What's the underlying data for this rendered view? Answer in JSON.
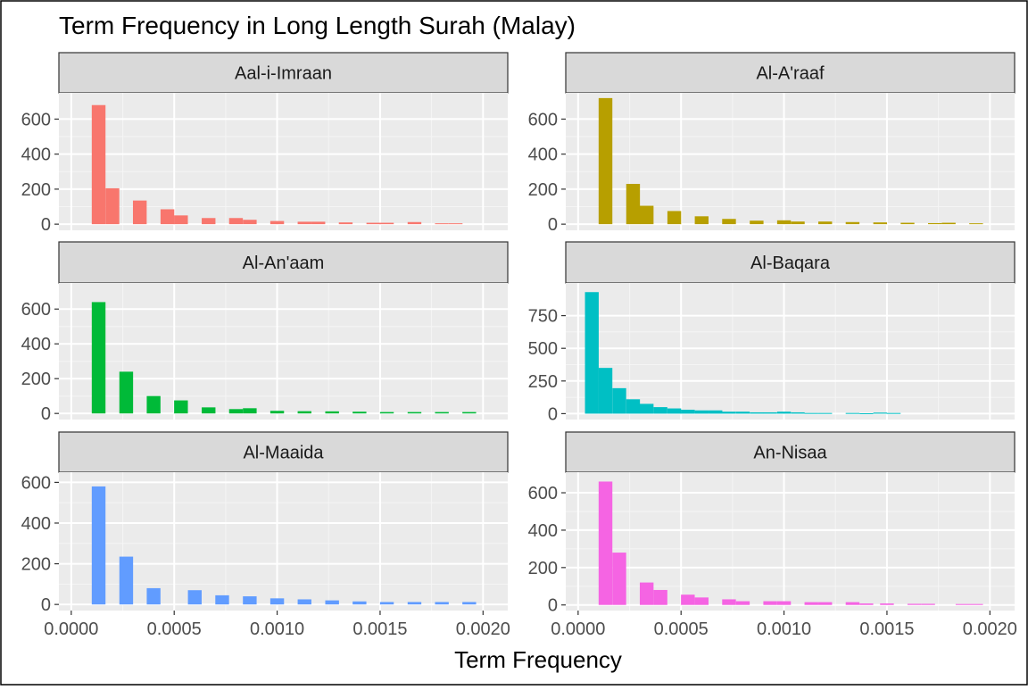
{
  "chart_data": {
    "type": "bar",
    "title": "Term Frequency in Long Length Surah (Malay)",
    "xlabel": "Term Frequency",
    "ylabel": "",
    "xlim": [
      -6e-05,
      0.00212
    ],
    "x_ticks": [
      "0.0000",
      "0.0005",
      "0.0010",
      "0.0015",
      "0.0020"
    ],
    "x_tick_values": [
      0,
      0.0005,
      0.001,
      0.0015,
      0.002
    ],
    "grid": true,
    "legend": "none",
    "facets": [
      {
        "name": "Aal-i-Imraan",
        "color": "#F8766D",
        "ylim": [
          -35,
          750
        ],
        "y_ticks": [
          0,
          200,
          400,
          600
        ],
        "bins": [
          {
            "x": 0.000133,
            "value": 680
          },
          {
            "x": 0.0002,
            "value": 205
          },
          {
            "x": 0.000333,
            "value": 135
          },
          {
            "x": 0.000467,
            "value": 85
          },
          {
            "x": 0.000533,
            "value": 50
          },
          {
            "x": 0.000667,
            "value": 35
          },
          {
            "x": 0.0008,
            "value": 35
          },
          {
            "x": 0.000867,
            "value": 25
          },
          {
            "x": 0.001,
            "value": 18
          },
          {
            "x": 0.001133,
            "value": 14
          },
          {
            "x": 0.0012,
            "value": 14
          },
          {
            "x": 0.001333,
            "value": 10
          },
          {
            "x": 0.001467,
            "value": 8
          },
          {
            "x": 0.001533,
            "value": 8
          },
          {
            "x": 0.001667,
            "value": 12
          },
          {
            "x": 0.0018,
            "value": 5
          },
          {
            "x": 0.001867,
            "value": 5
          }
        ]
      },
      {
        "name": "Al-A'raaf",
        "color": "#B79F00",
        "ylim": [
          -35,
          750
        ],
        "y_ticks": [
          0,
          200,
          400,
          600
        ],
        "bins": [
          {
            "x": 0.000133,
            "value": 720
          },
          {
            "x": 0.000267,
            "value": 230
          },
          {
            "x": 0.000333,
            "value": 105
          },
          {
            "x": 0.000467,
            "value": 75
          },
          {
            "x": 0.0006,
            "value": 45
          },
          {
            "x": 0.000733,
            "value": 30
          },
          {
            "x": 0.000867,
            "value": 20
          },
          {
            "x": 0.001,
            "value": 22
          },
          {
            "x": 0.001067,
            "value": 15
          },
          {
            "x": 0.0012,
            "value": 15
          },
          {
            "x": 0.001333,
            "value": 12
          },
          {
            "x": 0.001467,
            "value": 10
          },
          {
            "x": 0.0016,
            "value": 8
          },
          {
            "x": 0.001733,
            "value": 6
          },
          {
            "x": 0.0018,
            "value": 8
          },
          {
            "x": 0.001933,
            "value": 5
          }
        ]
      },
      {
        "name": "Al-An'aam",
        "color": "#00BA38",
        "ylim": [
          -35,
          750
        ],
        "y_ticks": [
          0,
          200,
          400,
          600
        ],
        "bins": [
          {
            "x": 0.000133,
            "value": 640
          },
          {
            "x": 0.000267,
            "value": 240
          },
          {
            "x": 0.0004,
            "value": 100
          },
          {
            "x": 0.000533,
            "value": 75
          },
          {
            "x": 0.000667,
            "value": 35
          },
          {
            "x": 0.0008,
            "value": 25
          },
          {
            "x": 0.000867,
            "value": 30
          },
          {
            "x": 0.001,
            "value": 15
          },
          {
            "x": 0.001133,
            "value": 13
          },
          {
            "x": 0.001267,
            "value": 12
          },
          {
            "x": 0.0014,
            "value": 10
          },
          {
            "x": 0.001533,
            "value": 8
          },
          {
            "x": 0.001667,
            "value": 8
          },
          {
            "x": 0.0018,
            "value": 8
          },
          {
            "x": 0.001933,
            "value": 8
          }
        ]
      },
      {
        "name": "Al-Baqara",
        "color": "#00BFC4",
        "ylim": [
          -45,
          1000
        ],
        "y_ticks": [
          0,
          250,
          500,
          750
        ],
        "bins": [
          {
            "x": 6.67e-05,
            "value": 930
          },
          {
            "x": 0.000133,
            "value": 350
          },
          {
            "x": 0.0002,
            "value": 195
          },
          {
            "x": 0.000267,
            "value": 110
          },
          {
            "x": 0.000333,
            "value": 75
          },
          {
            "x": 0.0004,
            "value": 50
          },
          {
            "x": 0.000467,
            "value": 40
          },
          {
            "x": 0.000533,
            "value": 30
          },
          {
            "x": 0.0006,
            "value": 25
          },
          {
            "x": 0.000667,
            "value": 25
          },
          {
            "x": 0.000733,
            "value": 15
          },
          {
            "x": 0.0008,
            "value": 15
          },
          {
            "x": 0.000867,
            "value": 10
          },
          {
            "x": 0.000933,
            "value": 10
          },
          {
            "x": 0.001,
            "value": 15
          },
          {
            "x": 0.001067,
            "value": 10
          },
          {
            "x": 0.001133,
            "value": 5
          },
          {
            "x": 0.0012,
            "value": 5
          },
          {
            "x": 0.001333,
            "value": 5
          },
          {
            "x": 0.0014,
            "value": 3
          },
          {
            "x": 0.001467,
            "value": 8
          },
          {
            "x": 0.001533,
            "value": 5
          }
        ]
      },
      {
        "name": "Al-Maaida",
        "color": "#619CFF",
        "ylim": [
          -30,
          650
        ],
        "y_ticks": [
          0,
          200,
          400,
          600
        ],
        "bins": [
          {
            "x": 0.000133,
            "value": 580
          },
          {
            "x": 0.000267,
            "value": 235
          },
          {
            "x": 0.0004,
            "value": 80
          },
          {
            "x": 0.0006,
            "value": 70
          },
          {
            "x": 0.000733,
            "value": 45
          },
          {
            "x": 0.000867,
            "value": 40
          },
          {
            "x": 0.001,
            "value": 30
          },
          {
            "x": 0.001133,
            "value": 25
          },
          {
            "x": 0.001267,
            "value": 20
          },
          {
            "x": 0.0014,
            "value": 15
          },
          {
            "x": 0.001533,
            "value": 12
          },
          {
            "x": 0.001667,
            "value": 12
          },
          {
            "x": 0.0018,
            "value": 12
          },
          {
            "x": 0.001933,
            "value": 12
          }
        ]
      },
      {
        "name": "An-Nisaa",
        "color": "#F564E3",
        "ylim": [
          -30,
          710
        ],
        "y_ticks": [
          0,
          200,
          400,
          600
        ],
        "bins": [
          {
            "x": 0.000133,
            "value": 660
          },
          {
            "x": 0.0002,
            "value": 280
          },
          {
            "x": 0.000333,
            "value": 120
          },
          {
            "x": 0.0004,
            "value": 80
          },
          {
            "x": 0.000533,
            "value": 55
          },
          {
            "x": 0.0006,
            "value": 40
          },
          {
            "x": 0.000733,
            "value": 30
          },
          {
            "x": 0.0008,
            "value": 20
          },
          {
            "x": 0.000933,
            "value": 20
          },
          {
            "x": 0.001,
            "value": 20
          },
          {
            "x": 0.001133,
            "value": 15
          },
          {
            "x": 0.0012,
            "value": 15
          },
          {
            "x": 0.001333,
            "value": 15
          },
          {
            "x": 0.0014,
            "value": 8
          },
          {
            "x": 0.0015,
            "value": 8
          },
          {
            "x": 0.001633,
            "value": 6
          },
          {
            "x": 0.0017,
            "value": 6
          },
          {
            "x": 0.001867,
            "value": 5
          },
          {
            "x": 0.001933,
            "value": 5
          }
        ]
      }
    ]
  }
}
